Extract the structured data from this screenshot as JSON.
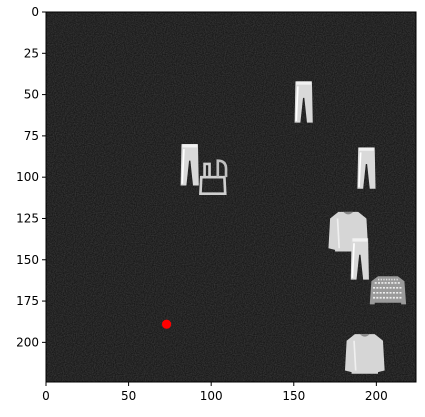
{
  "chart_data": {
    "type": "image",
    "title": "",
    "xlabel": "",
    "ylabel": "",
    "xlim": [
      0,
      224
    ],
    "ylim": [
      224,
      0
    ],
    "x_ticks": [
      0,
      50,
      100,
      150,
      200
    ],
    "y_ticks": [
      0,
      25,
      50,
      75,
      100,
      125,
      150,
      175,
      200
    ],
    "background_color": "#0b0b0b",
    "marker": {
      "x": 73,
      "y": 189,
      "color": "#ff0000"
    },
    "objects": [
      {
        "name": "trousers",
        "x": 156,
        "y": 55
      },
      {
        "name": "trousers",
        "x": 87,
        "y": 93
      },
      {
        "name": "bag",
        "x": 101,
        "y": 99
      },
      {
        "name": "trousers",
        "x": 194,
        "y": 95
      },
      {
        "name": "pullover",
        "x": 183,
        "y": 133
      },
      {
        "name": "trousers",
        "x": 190,
        "y": 150
      },
      {
        "name": "pullover-patterned",
        "x": 207,
        "y": 168
      },
      {
        "name": "pullover",
        "x": 193,
        "y": 207
      }
    ]
  }
}
